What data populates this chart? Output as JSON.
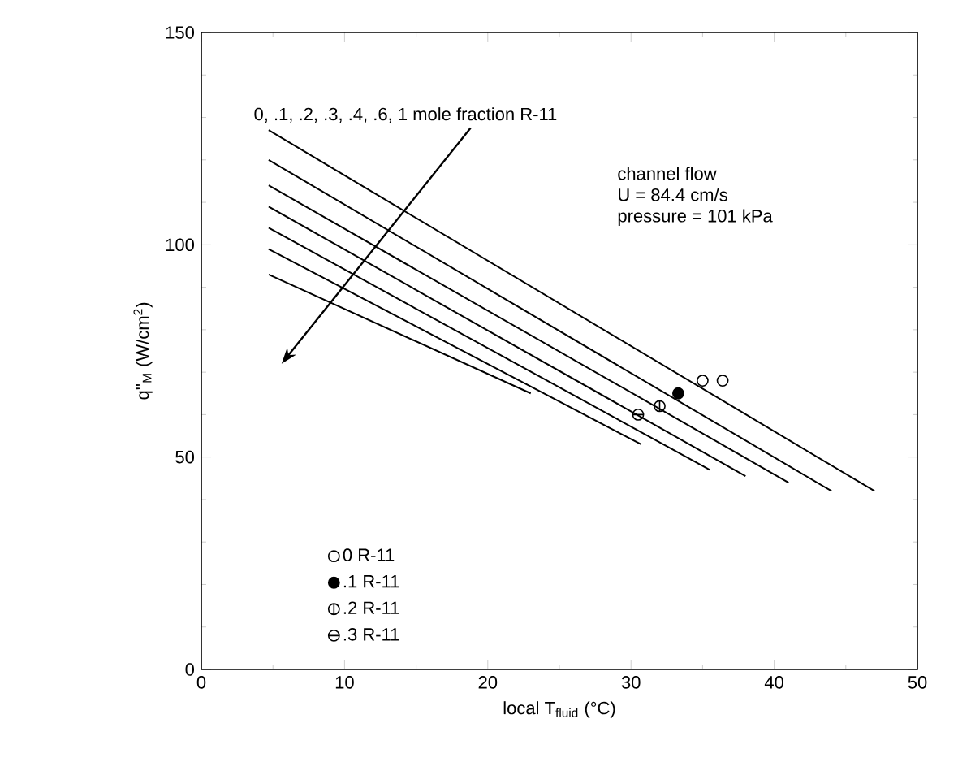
{
  "chart_data": {
    "type": "line",
    "xlabel": "local T$_{fluid}$  (°C)",
    "ylabel": "q''$_{M}$  (W/cm$^{2}$)",
    "xlim": [
      0,
      50
    ],
    "xticks": [
      0,
      10,
      20,
      30,
      40,
      50
    ],
    "ylim": [
      0,
      150
    ],
    "yticks": [
      0,
      50,
      100,
      150
    ],
    "annotations": [
      "0, .1, .2, .3, .4, .6, 1  mole fraction R-11",
      "channel flow",
      "U = 84.4 cm/s",
      "pressure = 101  kPa"
    ],
    "grid": false,
    "legend": "bottom left",
    "line_style": "solid",
    "series": [
      {
        "color": "#000000",
        "x": [
          4.7,
          47
        ],
        "values": [
          127,
          42
        ]
      },
      {
        "color": "#000000",
        "x": [
          4.7,
          44
        ],
        "values": [
          120,
          42
        ]
      },
      {
        "color": "#000000",
        "x": [
          4.7,
          41
        ],
        "values": [
          114,
          44
        ]
      },
      {
        "color": "#000000",
        "x": [
          4.7,
          38
        ],
        "values": [
          109,
          45.5
        ]
      },
      {
        "color": "#000000",
        "x": [
          4.7,
          35.5
        ],
        "values": [
          104,
          47
        ]
      },
      {
        "color": "#000000",
        "x": [
          4.7,
          30.7
        ],
        "values": [
          99,
          53
        ]
      },
      {
        "color": "#000000",
        "x": [
          4.7,
          23
        ],
        "values": [
          93,
          65
        ]
      },
      {
        "type": "scatter",
        "name": "0 R-11",
        "color": "#000000",
        "x": [
          35,
          36.4
        ],
        "values": [
          68,
          68
        ]
      },
      {
        "type": "scatter",
        "name": ".1 R-11",
        "color": "#000000",
        "x": [
          33.3
        ],
        "values": [
          65
        ]
      },
      {
        "type": "scatter",
        "name": ".2 R-11",
        "color": "#000000",
        "x": [
          32
        ],
        "values": [
          62
        ]
      },
      {
        "type": "scatter",
        "name": ".3 R-11",
        "color": "#000000",
        "x": [
          30.5
        ],
        "values": [
          60
        ]
      }
    ]
  }
}
